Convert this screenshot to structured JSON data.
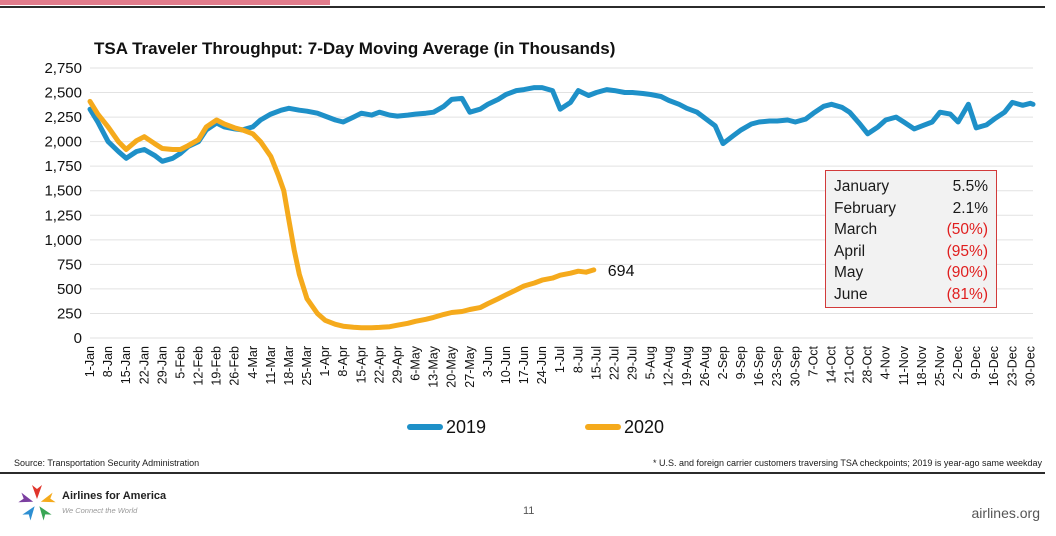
{
  "chart_data": {
    "type": "line",
    "title": "TSA Traveler Throughput: 7-Day Moving Average (in Thousands)",
    "ylim": [
      0,
      2750
    ],
    "yticks": [
      "0",
      "250",
      "500",
      "750",
      "1,000",
      "1,250",
      "1,500",
      "1,750",
      "2,000",
      "2,250",
      "2,500",
      "2,750"
    ],
    "x_tick_labels": [
      "1-Jan",
      "8-Jan",
      "15-Jan",
      "22-Jan",
      "29-Jan",
      "5-Feb",
      "12-Feb",
      "19-Feb",
      "26-Feb",
      "4-Mar",
      "11-Mar",
      "18-Mar",
      "25-Mar",
      "1-Apr",
      "8-Apr",
      "15-Apr",
      "22-Apr",
      "29-Apr",
      "6-May",
      "13-May",
      "20-May",
      "27-May",
      "3-Jun",
      "10-Jun",
      "17-Jun",
      "24-Jun",
      "1-Jul",
      "8-Jul",
      "15-Jul",
      "22-Jul",
      "29-Jul",
      "5-Aug",
      "12-Aug",
      "19-Aug",
      "26-Aug",
      "2-Sep",
      "9-Sep",
      "16-Sep",
      "23-Sep",
      "30-Sep",
      "7-Oct",
      "14-Oct",
      "21-Oct",
      "28-Oct",
      "4-Nov",
      "11-Nov",
      "18-Nov",
      "25-Nov",
      "2-Dec",
      "9-Dec",
      "16-Dec",
      "23-Dec",
      "30-Dec"
    ],
    "grid": true,
    "legend": "bottom",
    "series": [
      {
        "name": "2019",
        "color": "#1e90c8",
        "x": [
          "1-Jan",
          "4-Jan",
          "8-Jan",
          "12-Jan",
          "15-Jan",
          "19-Jan",
          "22-Jan",
          "26-Jan",
          "29-Jan",
          "2-Feb",
          "5-Feb",
          "8-Feb",
          "12-Feb",
          "15-Feb",
          "19-Feb",
          "22-Feb",
          "26-Feb",
          "29-Feb",
          "4-Mar",
          "7-Mar",
          "11-Mar",
          "15-Mar",
          "18-Mar",
          "22-Mar",
          "25-Mar",
          "29-Mar",
          "1-Apr",
          "5-Apr",
          "8-Apr",
          "12-Apr",
          "15-Apr",
          "19-Apr",
          "22-Apr",
          "26-Apr",
          "29-Apr",
          "3-May",
          "6-May",
          "10-May",
          "13-May",
          "17-May",
          "20-May",
          "24-May",
          "27-May",
          "31-May",
          "3-Jun",
          "7-Jun",
          "10-Jun",
          "14-Jun",
          "17-Jun",
          "21-Jun",
          "24-Jun",
          "28-Jun",
          "1-Jul",
          "5-Jul",
          "8-Jul",
          "12-Jul",
          "15-Jul",
          "19-Jul",
          "22-Jul",
          "26-Jul",
          "29-Jul",
          "2-Aug",
          "5-Aug",
          "9-Aug",
          "12-Aug",
          "16-Aug",
          "19-Aug",
          "23-Aug",
          "26-Aug",
          "30-Aug",
          "2-Sep",
          "6-Sep",
          "9-Sep",
          "13-Sep",
          "16-Sep",
          "20-Sep",
          "23-Sep",
          "27-Sep",
          "30-Sep",
          "4-Oct",
          "7-Oct",
          "11-Oct",
          "14-Oct",
          "18-Oct",
          "21-Oct",
          "25-Oct",
          "28-Oct",
          "1-Nov",
          "4-Nov",
          "8-Nov",
          "11-Nov",
          "15-Nov",
          "18-Nov",
          "22-Nov",
          "25-Nov",
          "29-Nov",
          "2-Dec",
          "6-Dec",
          "9-Dec",
          "13-Dec",
          "16-Dec",
          "20-Dec",
          "23-Dec",
          "27-Dec",
          "30-Dec",
          "31-Dec"
        ],
        "values": [
          2330,
          2200,
          2000,
          1900,
          1830,
          1900,
          1920,
          1860,
          1800,
          1830,
          1880,
          1950,
          2000,
          2120,
          2190,
          2150,
          2130,
          2120,
          2150,
          2220,
          2280,
          2320,
          2340,
          2320,
          2310,
          2290,
          2260,
          2220,
          2200,
          2250,
          2290,
          2270,
          2300,
          2270,
          2260,
          2270,
          2280,
          2290,
          2300,
          2360,
          2430,
          2440,
          2300,
          2330,
          2380,
          2430,
          2480,
          2520,
          2530,
          2550,
          2550,
          2520,
          2330,
          2400,
          2520,
          2470,
          2500,
          2530,
          2520,
          2500,
          2500,
          2490,
          2480,
          2460,
          2420,
          2380,
          2340,
          2300,
          2240,
          2160,
          1980,
          2060,
          2120,
          2180,
          2200,
          2210,
          2210,
          2220,
          2200,
          2230,
          2290,
          2360,
          2380,
          2350,
          2300,
          2180,
          2080,
          2150,
          2220,
          2250,
          2200,
          2130,
          2160,
          2200,
          2300,
          2280,
          2200,
          2380,
          2140,
          2170,
          2230,
          2300,
          2400,
          2370,
          2390,
          2380
        ]
      },
      {
        "name": "2020",
        "color": "#f5aa1c",
        "x": [
          "1-Jan",
          "4-Jan",
          "8-Jan",
          "12-Jan",
          "15-Jan",
          "19-Jan",
          "22-Jan",
          "26-Jan",
          "29-Jan",
          "2-Feb",
          "5-Feb",
          "8-Feb",
          "12-Feb",
          "15-Feb",
          "19-Feb",
          "22-Feb",
          "26-Feb",
          "29-Feb",
          "4-Mar",
          "7-Mar",
          "11-Mar",
          "14-Mar",
          "16-Mar",
          "18-Mar",
          "20-Mar",
          "22-Mar",
          "25-Mar",
          "29-Mar",
          "1-Apr",
          "5-Apr",
          "8-Apr",
          "12-Apr",
          "15-Apr",
          "19-Apr",
          "22-Apr",
          "26-Apr",
          "29-Apr",
          "3-May",
          "6-May",
          "10-May",
          "13-May",
          "17-May",
          "20-May",
          "24-May",
          "27-May",
          "31-May",
          "3-Jun",
          "7-Jun",
          "10-Jun",
          "14-Jun",
          "17-Jun",
          "21-Jun",
          "24-Jun",
          "28-Jun",
          "1-Jul",
          "5-Jul",
          "8-Jul",
          "11-Jul",
          "14-Jul"
        ],
        "values": [
          2410,
          2280,
          2150,
          2000,
          1920,
          2010,
          2050,
          1980,
          1930,
          1920,
          1920,
          1960,
          2020,
          2150,
          2220,
          2180,
          2140,
          2120,
          2080,
          2000,
          1850,
          1650,
          1500,
          1200,
          900,
          650,
          400,
          250,
          180,
          140,
          120,
          110,
          105,
          105,
          108,
          115,
          130,
          150,
          170,
          190,
          210,
          240,
          260,
          270,
          290,
          310,
          350,
          400,
          440,
          490,
          530,
          560,
          590,
          610,
          640,
          660,
          680,
          670,
          694
        ]
      }
    ],
    "end_label": "694"
  },
  "stats_box": [
    {
      "month": "January",
      "value": "5.5%",
      "negative": false
    },
    {
      "month": "February",
      "value": "2.1%",
      "negative": false
    },
    {
      "month": "March",
      "value": "(50%)",
      "negative": true
    },
    {
      "month": "April",
      "value": "(95%)",
      "negative": true
    },
    {
      "month": "May",
      "value": "(90%)",
      "negative": true
    },
    {
      "month": "June",
      "value": "(81%)",
      "negative": true
    }
  ],
  "footer": {
    "source": "Source: Transportation Security Administration",
    "footnote": "* U.S. and foreign carrier customers traversing TSA checkpoints; 2019 is year-ago same weekday",
    "brand": "Airlines for America",
    "tagline": "We Connect the World",
    "page_number": "11",
    "website": "airlines.org"
  }
}
